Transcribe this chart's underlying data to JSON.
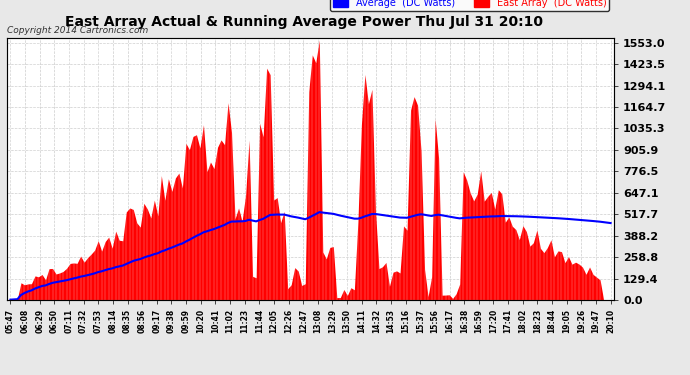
{
  "title": "East Array Actual & Running Average Power Thu Jul 31 20:10",
  "copyright": "Copyright 2014 Cartronics.com",
  "legend_avg": "Average  (DC Watts)",
  "legend_east": "East Array  (DC Watts)",
  "ymax": 1553.0,
  "yticks": [
    0.0,
    129.4,
    258.8,
    388.2,
    517.7,
    647.1,
    776.5,
    905.9,
    1035.3,
    1164.7,
    1294.1,
    1423.5,
    1553.0
  ],
  "background_color": "#e8e8e8",
  "plot_bg_color": "#ffffff",
  "bar_color": "#ff0000",
  "avg_line_color": "#0000ff",
  "title_color": "#000000",
  "grid_color": "#c0c0c0",
  "x_labels": [
    "05:47",
    "06:08",
    "06:29",
    "06:50",
    "07:11",
    "07:32",
    "07:53",
    "08:14",
    "08:35",
    "08:56",
    "09:17",
    "09:38",
    "09:59",
    "10:20",
    "10:41",
    "11:02",
    "11:23",
    "11:44",
    "12:05",
    "12:26",
    "12:47",
    "13:08",
    "13:29",
    "13:50",
    "14:11",
    "14:32",
    "14:53",
    "15:16",
    "15:37",
    "15:56",
    "16:17",
    "16:38",
    "16:59",
    "17:20",
    "17:41",
    "18:02",
    "18:23",
    "18:44",
    "19:05",
    "19:26",
    "19:47",
    "20:10"
  ]
}
